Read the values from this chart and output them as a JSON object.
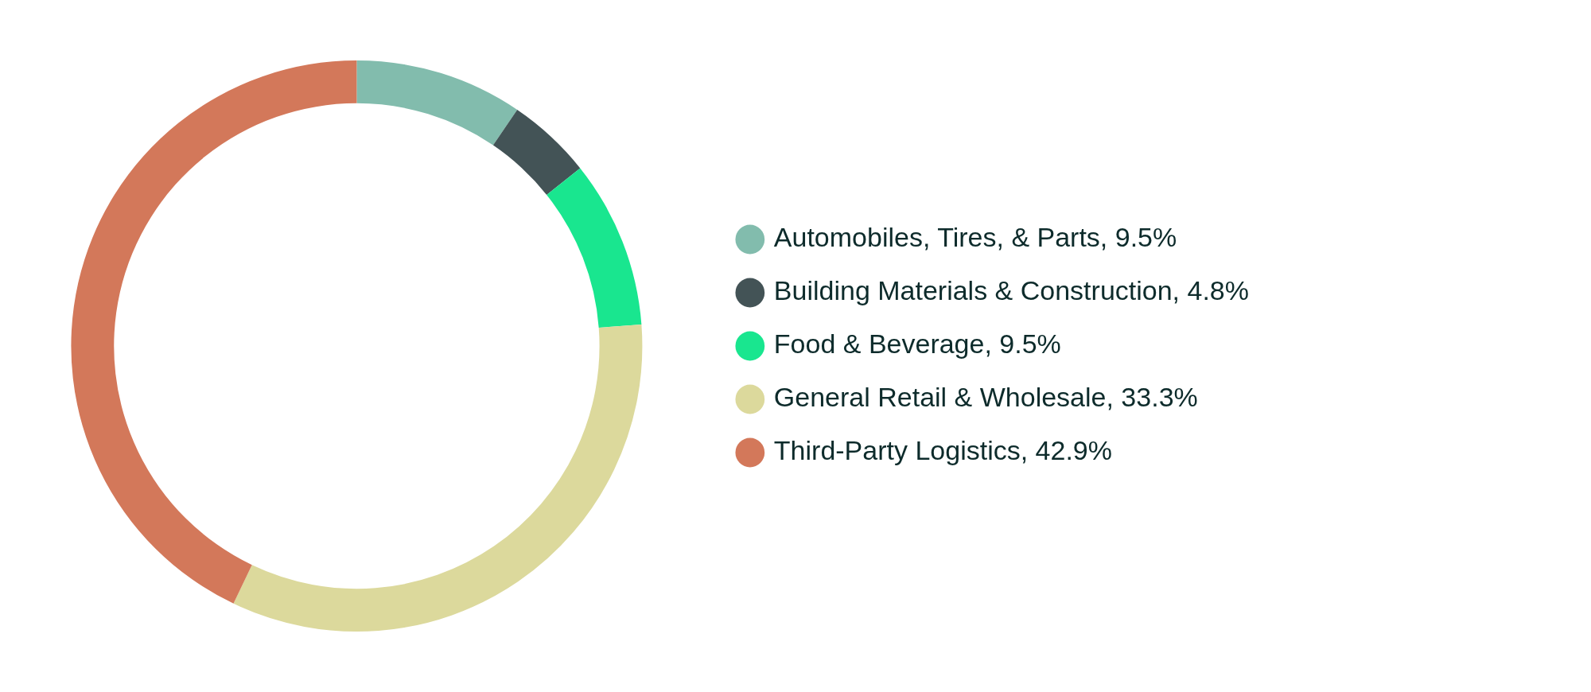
{
  "chart_data": {
    "type": "donut",
    "categories": [
      "Automobiles, Tires, & Parts, 9.5%",
      "Building Materials & Construction, 4.8%",
      "Food & Beverage, 9.5%",
      "General Retail & Wholesale, 33.3%",
      "Third-Party Logistics, 42.9%"
    ],
    "values": [
      9.5,
      4.8,
      9.5,
      33.3,
      42.9
    ],
    "colors": [
      "#82bcad",
      "#435356",
      "#19e68f",
      "#dcd99c",
      "#d3785a"
    ],
    "legend": "right"
  }
}
